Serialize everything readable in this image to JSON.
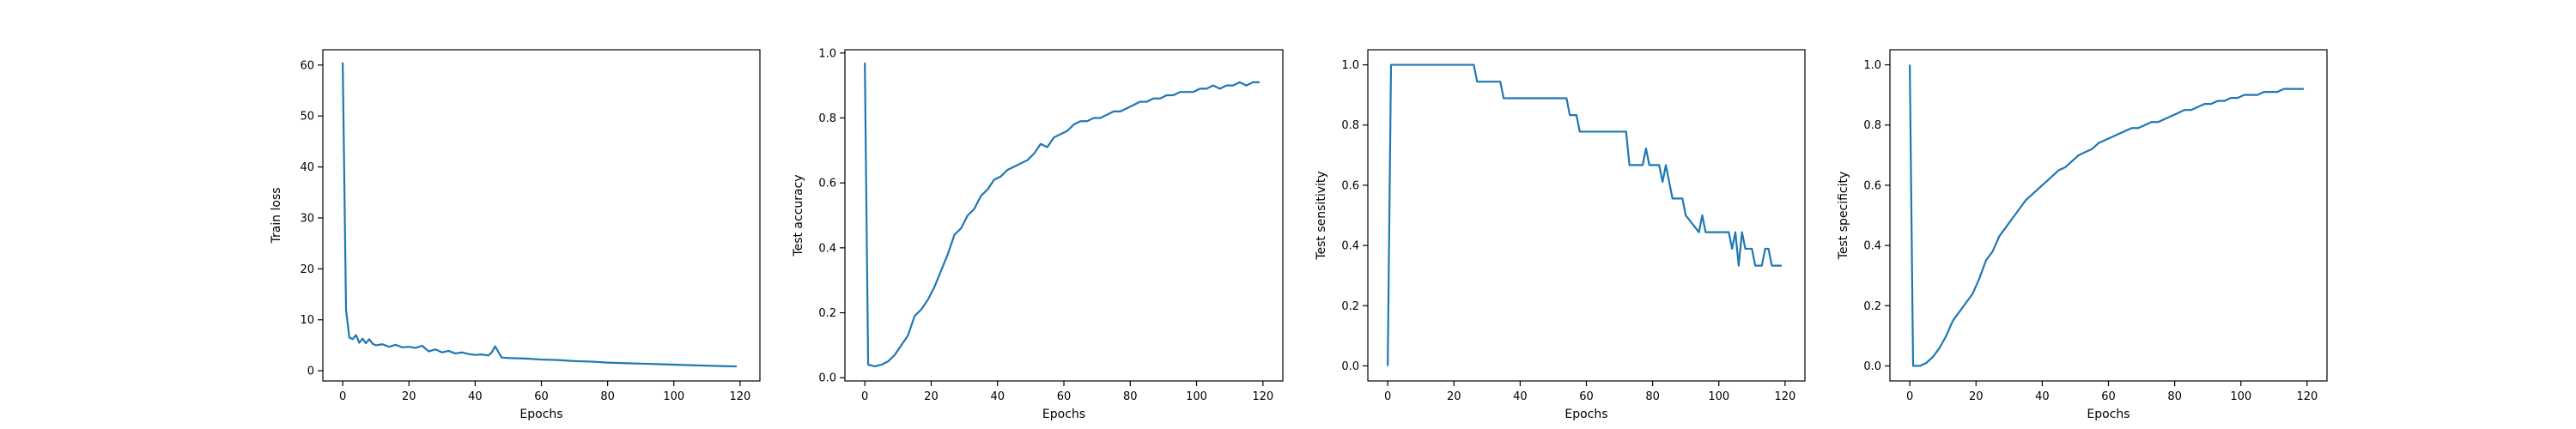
{
  "chart_data": [
    {
      "type": "line",
      "xlabel": "Epochs",
      "ylabel": "Train loss",
      "xlim": [
        -6,
        126
      ],
      "ylim": [
        -2,
        63
      ],
      "xticks": [
        0,
        20,
        40,
        60,
        80,
        100,
        120
      ],
      "yticks": [
        0,
        10,
        20,
        30,
        40,
        50,
        60
      ],
      "grid": false,
      "color": "#1f77b4",
      "series": [
        {
          "x": [
            0,
            1,
            2,
            3,
            4,
            5,
            6,
            7,
            8,
            9,
            10,
            12,
            14,
            16,
            18,
            20,
            22,
            24,
            26,
            28,
            30,
            32,
            34,
            36,
            38,
            40,
            42,
            44,
            45,
            46,
            48,
            50,
            55,
            60,
            65,
            70,
            75,
            80,
            85,
            90,
            95,
            100,
            105,
            110,
            115,
            119
          ],
          "y": [
            60.5,
            12,
            6.5,
            6.2,
            7,
            5.5,
            6.3,
            5.4,
            6.2,
            5.3,
            5,
            5.2,
            4.7,
            5.1,
            4.6,
            4.7,
            4.5,
            4.9,
            3.8,
            4.2,
            3.6,
            3.9,
            3.4,
            3.6,
            3.3,
            3.1,
            3.2,
            3,
            3.6,
            4.8,
            2.6,
            2.5,
            2.4,
            2.2,
            2.1,
            1.9,
            1.8,
            1.6,
            1.5,
            1.4,
            1.3,
            1.2,
            1.1,
            1,
            0.9,
            0.85
          ]
        }
      ]
    },
    {
      "type": "line",
      "xlabel": "Epochs",
      "ylabel": "Test accuracy",
      "xlim": [
        -6,
        126
      ],
      "ylim": [
        -0.01,
        1.01
      ],
      "xticks": [
        0,
        20,
        40,
        60,
        80,
        100,
        120
      ],
      "yticks": [
        0.0,
        0.2,
        0.4,
        0.6,
        0.8,
        1.0
      ],
      "ytick_labels": [
        "0.0",
        "0.2",
        "0.4",
        "0.6",
        "0.8",
        "1.0"
      ],
      "grid": false,
      "color": "#1f77b4",
      "series": [
        {
          "x": [
            0,
            1,
            3,
            5,
            7,
            9,
            11,
            13,
            15,
            17,
            19,
            21,
            23,
            25,
            27,
            29,
            31,
            33,
            35,
            37,
            39,
            41,
            43,
            45,
            47,
            49,
            51,
            53,
            55,
            57,
            59,
            61,
            63,
            65,
            67,
            69,
            71,
            73,
            75,
            77,
            79,
            81,
            83,
            85,
            87,
            89,
            91,
            93,
            95,
            97,
            99,
            101,
            103,
            105,
            107,
            109,
            111,
            113,
            115,
            117,
            119
          ],
          "y": [
            0.97,
            0.04,
            0.035,
            0.04,
            0.05,
            0.07,
            0.1,
            0.13,
            0.19,
            0.21,
            0.24,
            0.28,
            0.33,
            0.38,
            0.44,
            0.46,
            0.5,
            0.52,
            0.56,
            0.58,
            0.61,
            0.62,
            0.64,
            0.65,
            0.66,
            0.67,
            0.69,
            0.72,
            0.71,
            0.74,
            0.75,
            0.76,
            0.78,
            0.79,
            0.79,
            0.8,
            0.8,
            0.81,
            0.82,
            0.82,
            0.83,
            0.84,
            0.85,
            0.85,
            0.86,
            0.86,
            0.87,
            0.87,
            0.88,
            0.88,
            0.88,
            0.89,
            0.89,
            0.9,
            0.89,
            0.9,
            0.9,
            0.91,
            0.9,
            0.91,
            0.91
          ]
        }
      ]
    },
    {
      "type": "line",
      "xlabel": "Epochs",
      "ylabel": "Test sensitivity",
      "xlim": [
        -6,
        126
      ],
      "ylim": [
        -0.05,
        1.05
      ],
      "xticks": [
        0,
        20,
        40,
        60,
        80,
        100,
        120
      ],
      "yticks": [
        0.0,
        0.2,
        0.4,
        0.6,
        0.8,
        1.0
      ],
      "ytick_labels": [
        "0.0",
        "0.2",
        "0.4",
        "0.6",
        "0.8",
        "1.0"
      ],
      "grid": false,
      "color": "#1f77b4",
      "series": [
        {
          "x": [
            0,
            1,
            26,
            27,
            34,
            35,
            54,
            55,
            57,
            58,
            72,
            73,
            77,
            78,
            79,
            82,
            83,
            84,
            85,
            86,
            89,
            90,
            94,
            95,
            96,
            97,
            103,
            104,
            105,
            106,
            107,
            108,
            110,
            111,
            113,
            114,
            115,
            116,
            117,
            118,
            119
          ],
          "y": [
            0.0,
            1.0,
            1.0,
            0.944,
            0.944,
            0.889,
            0.889,
            0.833,
            0.833,
            0.778,
            0.778,
            0.667,
            0.667,
            0.722,
            0.667,
            0.667,
            0.611,
            0.667,
            0.611,
            0.556,
            0.556,
            0.5,
            0.444,
            0.5,
            0.444,
            0.444,
            0.444,
            0.389,
            0.444,
            0.333,
            0.444,
            0.389,
            0.389,
            0.333,
            0.333,
            0.389,
            0.389,
            0.333,
            0.333,
            0.333,
            0.333
          ]
        }
      ]
    },
    {
      "type": "line",
      "xlabel": "Epochs",
      "ylabel": "Test specificity",
      "xlim": [
        -6,
        126
      ],
      "ylim": [
        -0.05,
        1.05
      ],
      "xticks": [
        0,
        20,
        40,
        60,
        80,
        100,
        120
      ],
      "yticks": [
        0.0,
        0.2,
        0.4,
        0.6,
        0.8,
        1.0
      ],
      "ytick_labels": [
        "0.0",
        "0.2",
        "0.4",
        "0.6",
        "0.8",
        "1.0"
      ],
      "grid": false,
      "color": "#1f77b4",
      "series": [
        {
          "x": [
            0,
            1,
            3,
            5,
            7,
            9,
            11,
            13,
            15,
            17,
            19,
            21,
            23,
            25,
            27,
            29,
            31,
            33,
            35,
            37,
            39,
            41,
            43,
            45,
            47,
            49,
            51,
            53,
            55,
            57,
            59,
            61,
            63,
            65,
            67,
            69,
            71,
            73,
            75,
            77,
            79,
            81,
            83,
            85,
            87,
            89,
            91,
            93,
            95,
            97,
            99,
            101,
            103,
            105,
            107,
            109,
            111,
            113,
            115,
            117,
            119
          ],
          "y": [
            1.0,
            0.0,
            0.0,
            0.01,
            0.03,
            0.06,
            0.1,
            0.15,
            0.18,
            0.21,
            0.24,
            0.29,
            0.35,
            0.38,
            0.43,
            0.46,
            0.49,
            0.52,
            0.55,
            0.57,
            0.59,
            0.61,
            0.63,
            0.65,
            0.66,
            0.68,
            0.7,
            0.71,
            0.72,
            0.74,
            0.75,
            0.76,
            0.77,
            0.78,
            0.79,
            0.79,
            0.8,
            0.81,
            0.81,
            0.82,
            0.83,
            0.84,
            0.85,
            0.85,
            0.86,
            0.87,
            0.87,
            0.88,
            0.88,
            0.89,
            0.89,
            0.9,
            0.9,
            0.9,
            0.91,
            0.91,
            0.91,
            0.92,
            0.92,
            0.92,
            0.92
          ]
        }
      ]
    }
  ]
}
